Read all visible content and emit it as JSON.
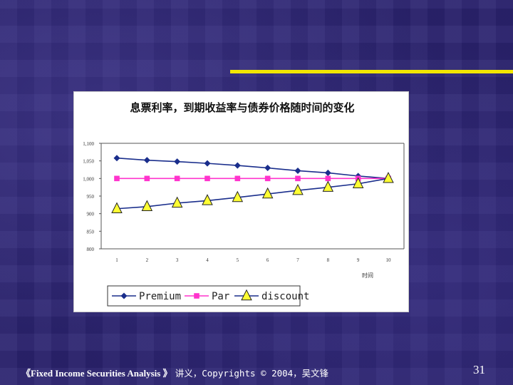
{
  "slide": {
    "footer_course": "《Fixed Income Securities Analysis 》",
    "footer_copyright": "讲义，Copyrights © 2004，吴文锋",
    "page_number": "31",
    "accent_color": "#f2e600"
  },
  "chart_data": {
    "type": "line",
    "title": "息票利率，到期收益率与债券价格随时间的变化",
    "xlabel": "时间",
    "ylabel": "",
    "categories": [
      "1",
      "2",
      "3",
      "4",
      "5",
      "6",
      "7",
      "8",
      "9",
      "10"
    ],
    "ylim": [
      800,
      1100
    ],
    "yticks": [
      "800",
      "850",
      "900",
      "950",
      "1,000",
      "1,050",
      "1,100"
    ],
    "ytick_values": [
      800,
      850,
      900,
      950,
      1000,
      1050,
      1100
    ],
    "grid": false,
    "legend_placement": "bottom",
    "series": [
      {
        "name": "Premium",
        "values": [
          1058,
          1052,
          1048,
          1043,
          1037,
          1030,
          1022,
          1016,
          1007,
          1000
        ],
        "color": "#1a2e8c",
        "marker": "diamond",
        "marker_color": "#1a2e8c"
      },
      {
        "name": "Par",
        "values": [
          1000,
          1000,
          1000,
          1000,
          1000,
          1000,
          1000,
          1000,
          1000,
          1000
        ],
        "color": "#ff33cc",
        "marker": "square",
        "marker_color": "#ff33cc"
      },
      {
        "name": "discount",
        "values": [
          914,
          920,
          930,
          937,
          946,
          956,
          966,
          975,
          985,
          1000
        ],
        "color": "#1a2e8c",
        "marker": "triangle",
        "marker_color": "#ffff33"
      }
    ]
  }
}
